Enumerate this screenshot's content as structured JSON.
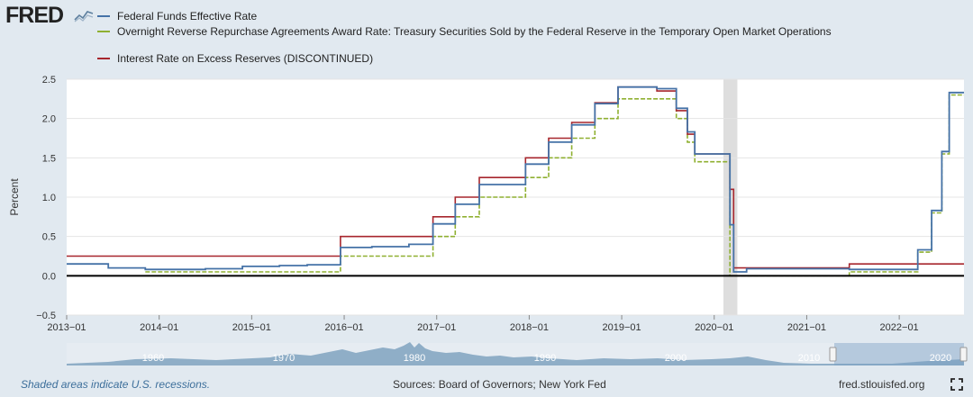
{
  "logo": {
    "text": "FRED"
  },
  "legend": [
    {
      "label": "Federal Funds Effective Rate",
      "color": "#4572a7"
    },
    {
      "label": "Overnight Reverse Repurchase Agreements Award Rate: Treasury Securities Sold by the Federal Reserve in the Temporary Open Market Operations",
      "color": "#8fb031"
    },
    {
      "label": "Interest Rate on Excess Reserves (DISCONTINUED)",
      "color": "#a7262d"
    }
  ],
  "chart_data": {
    "type": "line",
    "ylabel": "Percent",
    "ylim": [
      -0.5,
      2.5
    ],
    "xlim": [
      2013.0,
      2022.7
    ],
    "yticks": [
      2.5,
      2.0,
      1.5,
      1.0,
      0.5,
      0.0,
      -0.5
    ],
    "ytick_labels": [
      "2.5",
      "2.0",
      "1.5",
      "1.0",
      "0.5",
      "0.0",
      "−0.5"
    ],
    "xticks": [
      2013.0,
      2014.0,
      2015.0,
      2016.0,
      2017.0,
      2018.0,
      2019.0,
      2020.0,
      2021.0,
      2022.0
    ],
    "xtick_labels": [
      "2013−01",
      "2014−01",
      "2015−01",
      "2016−01",
      "2017−01",
      "2018−01",
      "2019−01",
      "2020−01",
      "2021−01",
      "2022−01"
    ],
    "recessions": [
      [
        2020.1,
        2020.25
      ]
    ],
    "zero_line": 0.0,
    "series": [
      {
        "name": "Interest Rate on Excess Reserves (DISCONTINUED)",
        "color": "#a7262d",
        "x": [
          2013.0,
          2015.96,
          2016.96,
          2017.2,
          2017.46,
          2017.96,
          2018.21,
          2018.46,
          2018.71,
          2018.96,
          2019.38,
          2019.59,
          2019.71,
          2019.79,
          2020.17,
          2020.21,
          2021.46
        ],
        "y": [
          0.25,
          0.5,
          0.75,
          1.0,
          1.25,
          1.5,
          1.75,
          1.95,
          2.2,
          2.4,
          2.35,
          2.1,
          1.8,
          1.55,
          1.1,
          0.1,
          0.15
        ]
      },
      {
        "name": "Overnight Reverse Repurchase Agreements Award Rate",
        "color": "#8fb031",
        "x": [
          2013.85,
          2015.96,
          2016.96,
          2017.2,
          2017.46,
          2017.96,
          2018.21,
          2018.46,
          2018.71,
          2018.96,
          2019.59,
          2019.71,
          2019.79,
          2020.17,
          2020.21,
          2021.46,
          2022.2,
          2022.35,
          2022.46,
          2022.54
        ],
        "y": [
          0.05,
          0.25,
          0.5,
          0.75,
          1.0,
          1.25,
          1.5,
          1.75,
          2.0,
          2.25,
          2.0,
          1.7,
          1.45,
          0.0,
          0.0,
          0.05,
          0.3,
          0.8,
          1.55,
          2.3
        ]
      },
      {
        "name": "Federal Funds Effective Rate",
        "color": "#4572a7",
        "x": [
          2013.0,
          2013.45,
          2013.85,
          2014.5,
          2014.9,
          2015.3,
          2015.6,
          2015.96,
          2016.3,
          2016.7,
          2016.96,
          2017.2,
          2017.46,
          2017.96,
          2018.21,
          2018.46,
          2018.71,
          2018.96,
          2019.38,
          2019.59,
          2019.71,
          2019.79,
          2020.17,
          2020.21,
          2020.35,
          2021.46,
          2022.2,
          2022.35,
          2022.46,
          2022.54,
          2022.7
        ],
        "y": [
          0.15,
          0.1,
          0.08,
          0.09,
          0.12,
          0.13,
          0.14,
          0.36,
          0.37,
          0.4,
          0.66,
          0.91,
          1.16,
          1.42,
          1.7,
          1.92,
          2.19,
          2.4,
          2.38,
          2.13,
          1.83,
          1.55,
          0.65,
          0.05,
          0.09,
          0.08,
          0.33,
          0.83,
          1.58,
          2.33,
          2.33
        ]
      }
    ]
  },
  "range_slider": {
    "labels": [
      "1960",
      "1970",
      "1980",
      "1990",
      "2000",
      "2010",
      "2020"
    ]
  },
  "footer": {
    "note": "Shaded areas indicate U.S. recessions.",
    "source": "Sources: Board of Governors; New York Fed",
    "link": "fred.stlouisfed.org"
  }
}
